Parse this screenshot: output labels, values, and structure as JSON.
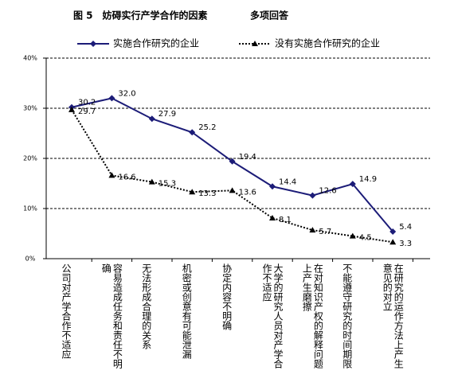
{
  "chart_data": {
    "type": "line",
    "title": "图 5　妨碍实行产学合作的因素",
    "subtitle": "多项回答",
    "categories": [
      "公司对产学合作不适应",
      "容易造成任务和责任不明确",
      "无法形成合理的关系",
      "机密或创意有可能泄漏",
      "协定内容不明确",
      "大学的研究人员对产学合作不适应",
      "在对知识产权的解释问题上产生磨擦",
      "不能遵守研究的时间期限",
      "在研究的运作方法上产生意见的对立"
    ],
    "series": [
      {
        "name": "实施合作研究的企业",
        "color": "#1c1c78",
        "marker": "diamond",
        "dash": "solid",
        "values": [
          30.2,
          32.0,
          27.9,
          25.2,
          19.4,
          14.4,
          12.6,
          14.9,
          5.4
        ],
        "value_labels": [
          "30.2",
          "32.0",
          "27.9",
          "25.2",
          "19.4",
          "14.4",
          "12.6",
          "14.9",
          "5.4"
        ]
      },
      {
        "name": "没有实施合作研究的企业",
        "color": "#000000",
        "marker": "triangle",
        "dash": "dotted",
        "values": [
          29.7,
          16.6,
          15.3,
          13.3,
          13.6,
          8.1,
          5.7,
          4.5,
          3.3
        ],
        "value_labels": [
          "29.7",
          "16.6",
          "15.3",
          "13.3",
          "13.6",
          "8.1",
          "5.7",
          "4.5",
          "3.3"
        ]
      }
    ],
    "ylim": [
      0,
      40
    ],
    "yticks": [
      {
        "value": 0,
        "label": "0%"
      },
      {
        "value": 10,
        "label": "10%"
      },
      {
        "value": 20,
        "label": "20%"
      },
      {
        "value": 30,
        "label": "30%"
      },
      {
        "value": 40,
        "label": "40%"
      }
    ],
    "grid": true
  }
}
